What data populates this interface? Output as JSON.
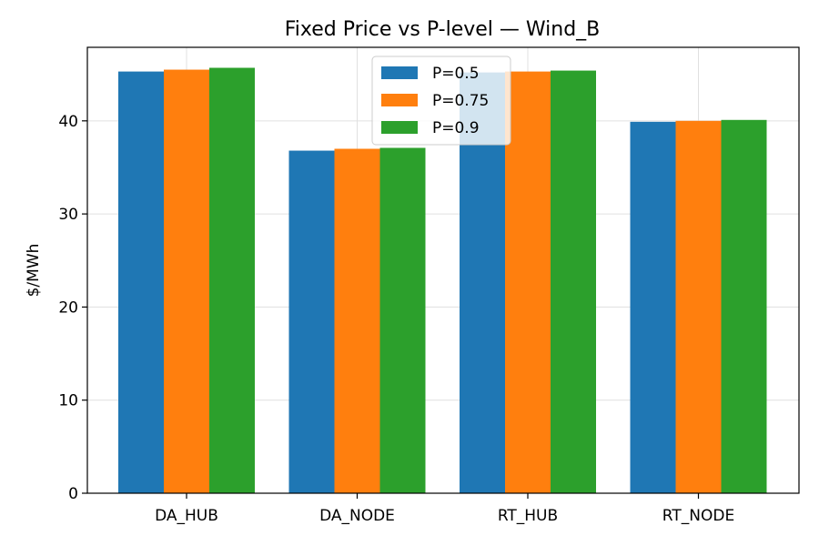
{
  "chart_data": {
    "type": "bar",
    "title": "Fixed Price vs P-level — Wind_B",
    "xlabel": "",
    "ylabel": "$/MWh",
    "categories": [
      "DA_HUB",
      "DA_NODE",
      "RT_HUB",
      "RT_NODE"
    ],
    "series": [
      {
        "name": "P=0.5",
        "values": [
          45.3,
          36.8,
          45.2,
          39.9
        ],
        "color": "#1f77b4"
      },
      {
        "name": "P=0.75",
        "values": [
          45.5,
          37.0,
          45.3,
          40.0
        ],
        "color": "#ff7f0e"
      },
      {
        "name": "P=0.9",
        "values": [
          45.7,
          37.1,
          45.4,
          40.1
        ],
        "color": "#2ca02c"
      }
    ],
    "ylim": [
      0,
      47.9
    ],
    "yticks": [
      0,
      10,
      20,
      30,
      40
    ],
    "grid": true,
    "legend_position": "top-center"
  }
}
